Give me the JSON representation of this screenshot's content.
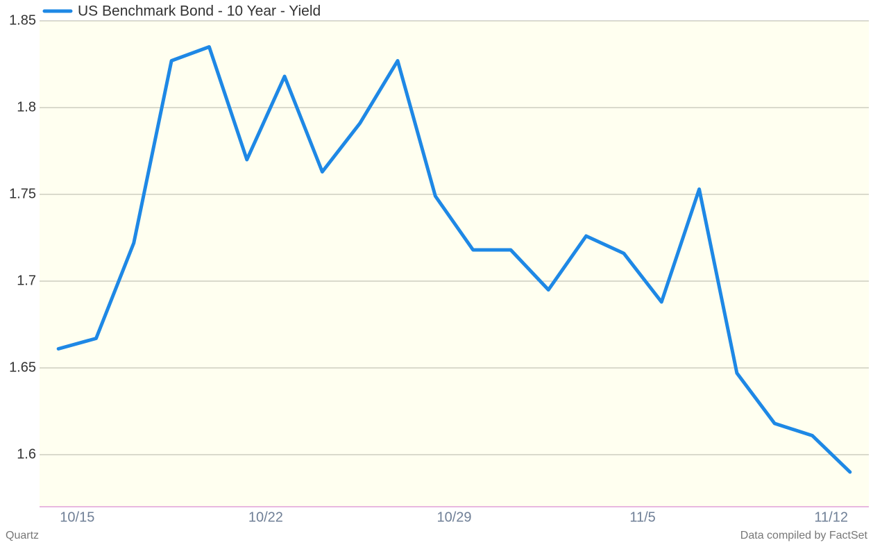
{
  "chart_data": {
    "type": "line",
    "series": [
      {
        "name": "US Benchmark Bond - 10 Year - Yield",
        "color": "#1e88e5",
        "values": [
          1.661,
          1.667,
          1.722,
          1.827,
          1.835,
          1.77,
          1.818,
          1.763,
          1.791,
          1.827,
          1.749,
          1.718,
          1.718,
          1.695,
          1.726,
          1.716,
          1.688,
          1.753,
          1.647,
          1.618,
          1.611,
          1.59
        ]
      }
    ],
    "categories": [
      "10/15",
      null,
      null,
      null,
      null,
      "10/22",
      null,
      null,
      null,
      null,
      "10/29",
      null,
      null,
      null,
      null,
      "11/5",
      null,
      null,
      null,
      null,
      "11/12",
      null
    ],
    "ylim": [
      1.57,
      1.85
    ],
    "yticks": [
      1.6,
      1.65,
      1.7,
      1.75,
      1.8,
      1.85
    ],
    "grid": true,
    "source": "Data compiled by FactSet",
    "credit": "Quartz"
  }
}
